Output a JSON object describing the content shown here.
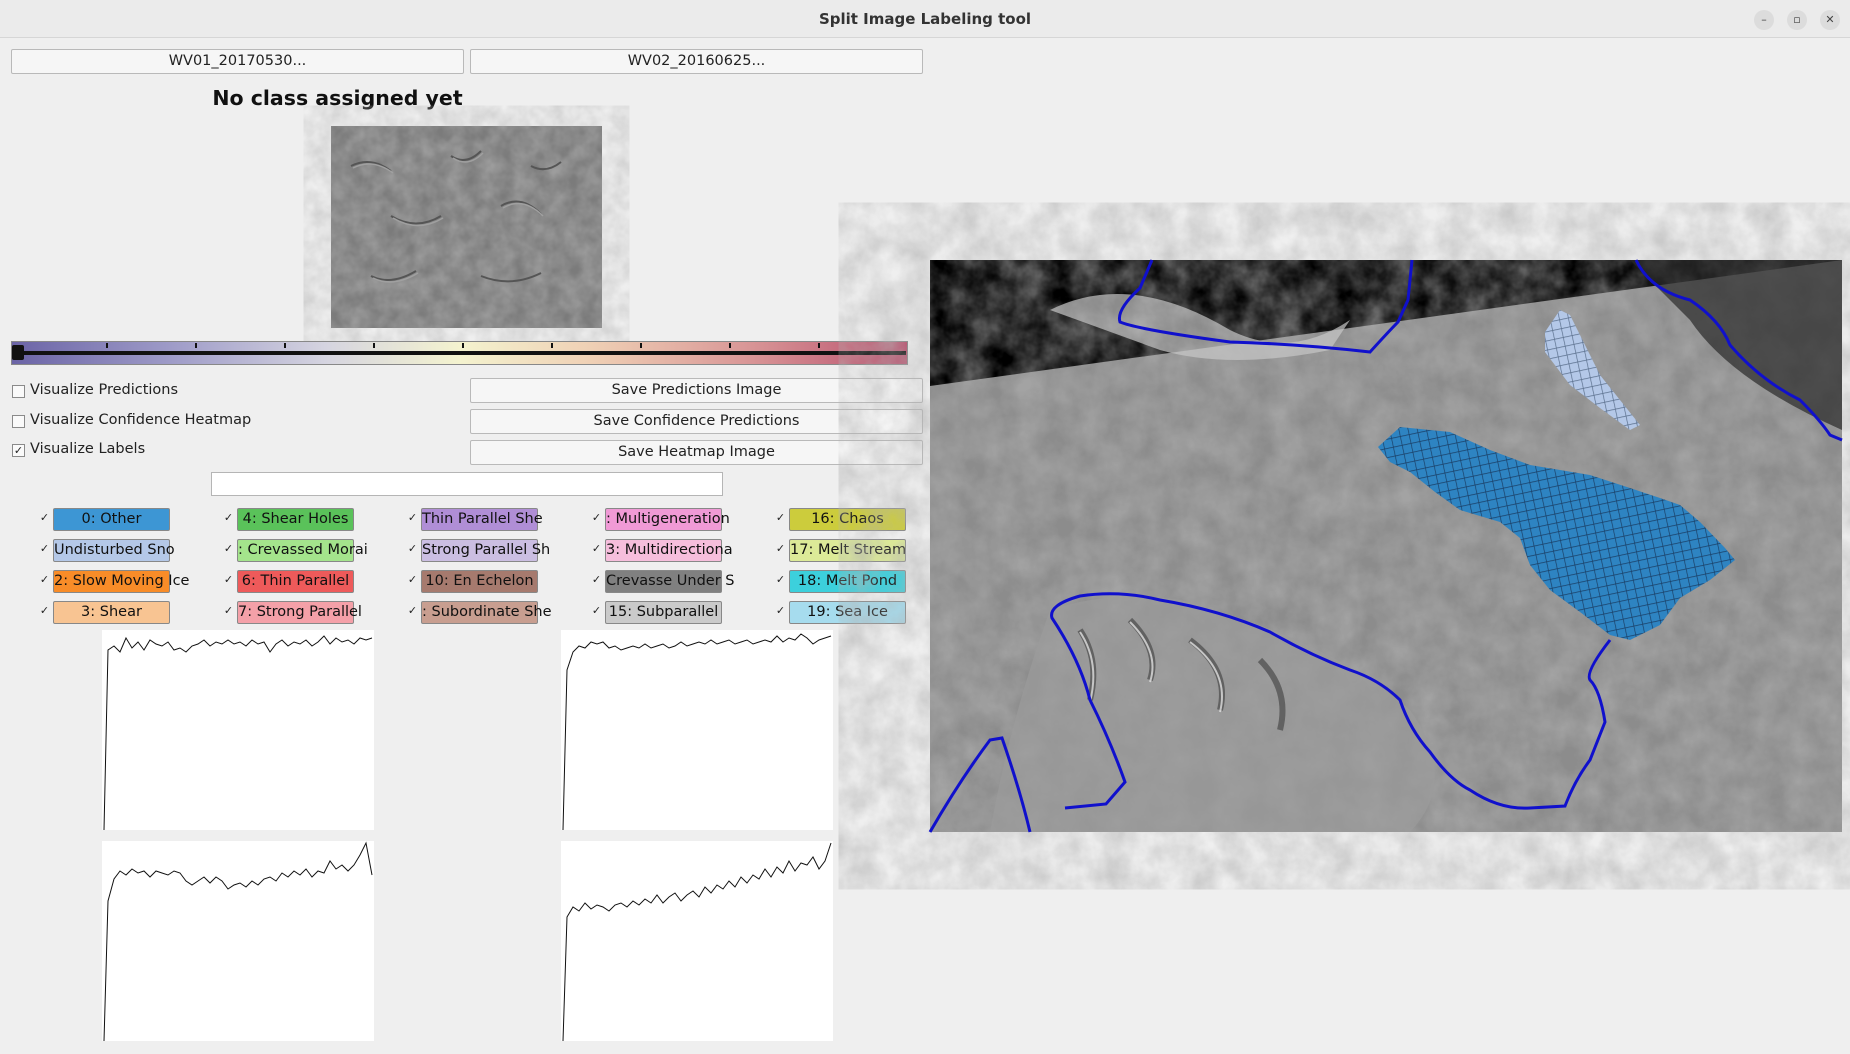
{
  "window": {
    "title": "Split Image Labeling tool",
    "minimize_glyph": "–",
    "restore_glyph": "▫",
    "close_glyph": "✕"
  },
  "image_buttons": [
    "WV01_20170530...",
    "WV02_20160625..."
  ],
  "status": {
    "no_class": "No class assigned yet"
  },
  "options": [
    {
      "label": "Visualize Predictions",
      "checked": false
    },
    {
      "label": "Visualize Confidence Heatmap",
      "checked": false
    },
    {
      "label": "Visualize Labels",
      "checked": true
    }
  ],
  "save_buttons": [
    "Save Predictions Image",
    "Save Confidence Predictions",
    "Save Heatmap Image"
  ],
  "search": {
    "value": "",
    "placeholder": ""
  },
  "check_glyph": "✓",
  "classes": [
    {
      "label": "0: Other",
      "color": "#3d96d4"
    },
    {
      "label": "4: Shear Holes",
      "color": "#5ac25a"
    },
    {
      "label": "Thin Parallel She",
      "color": "#b08ed6"
    },
    {
      "label": ": Multigeneration",
      "color": "#f09ad6"
    },
    {
      "label": "16: Chaos",
      "color": "#cccc3c"
    },
    {
      "label": "Undisturbed Sno",
      "color": "#b4c8e8"
    },
    {
      "label": ": Crevassed Morai",
      "color": "#a4e48c"
    },
    {
      "label": "Strong Parallel Sh",
      "color": "#cbbee2"
    },
    {
      "label": "3: Multidirectiona",
      "color": "#f6bedc"
    },
    {
      "label": "17: Melt Stream",
      "color": "#dcea98"
    },
    {
      "label": "2: Slow Moving Ice",
      "color": "#f88c28"
    },
    {
      "label": "6: Thin Parallel",
      "color": "#ee5a5a"
    },
    {
      "label": "10: En Echelon",
      "color": "#a67a6e"
    },
    {
      "label": "Crevasse Under S",
      "color": "#808080"
    },
    {
      "label": "18: Melt Pond",
      "color": "#3cd0dc"
    },
    {
      "label": "3: Shear",
      "color": "#f8c492"
    },
    {
      "label": "7: Strong Parallel",
      "color": "#f4a0a8"
    },
    {
      "label": ": Subordinate She",
      "color": "#c89e90"
    },
    {
      "label": "15: Subparallel",
      "color": "#cacaca"
    },
    {
      "label": "19: Sea Ice",
      "color": "#a6dcee"
    }
  ],
  "colors": {
    "boundary": "#1010cc",
    "label_overlay": "#2e84c2",
    "label_overlay_2": "#b4c8e8"
  }
}
